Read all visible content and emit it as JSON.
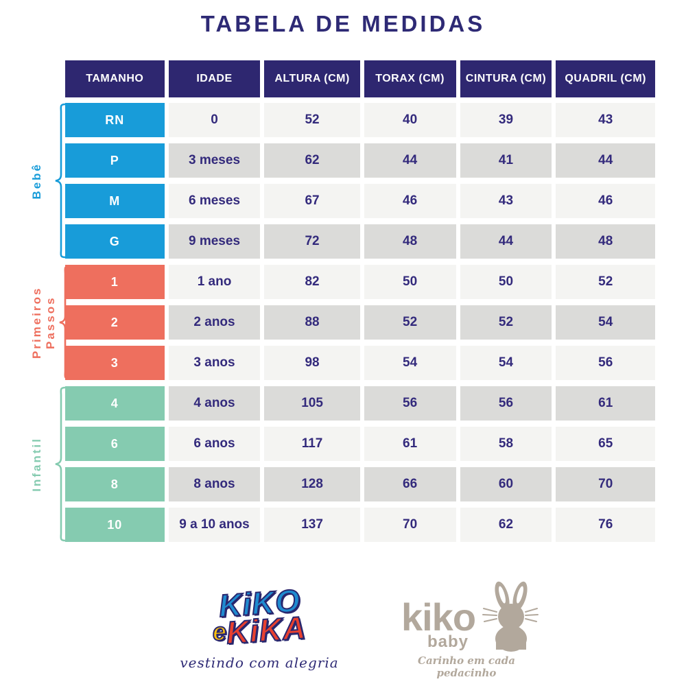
{
  "title": "TABELA DE MEDIDAS",
  "colors": {
    "header_bg": "#2E2770",
    "text_navy": "#332A7C",
    "row_light": "#F4F4F2",
    "row_dark": "#DBDBD9",
    "bebe": "#189CD9",
    "primeiros_passos": "#EE6F5E",
    "infantil": "#85CBB0"
  },
  "table": {
    "headers": [
      "TAMANHO",
      "IDADE",
      "ALTURA (CM)",
      "TORAX (CM)",
      "CINTURA (CM)",
      "QUADRIL (CM)"
    ],
    "groups": [
      {
        "label": "Bebê",
        "color_key": "bebe",
        "rows": [
          [
            "RN",
            "0",
            "52",
            "40",
            "39",
            "43"
          ],
          [
            "P",
            "3 meses",
            "62",
            "44",
            "41",
            "44"
          ],
          [
            "M",
            "6 meses",
            "67",
            "46",
            "43",
            "46"
          ],
          [
            "G",
            "9 meses",
            "72",
            "48",
            "44",
            "48"
          ]
        ]
      },
      {
        "label": "Primeiros Passos",
        "color_key": "primeiros_passos",
        "rows": [
          [
            "1",
            "1 ano",
            "82",
            "50",
            "50",
            "52"
          ],
          [
            "2",
            "2 anos",
            "88",
            "52",
            "52",
            "54"
          ],
          [
            "3",
            "3 anos",
            "98",
            "54",
            "54",
            "56"
          ]
        ]
      },
      {
        "label": "Infantil",
        "color_key": "infantil",
        "rows": [
          [
            "4",
            "4 anos",
            "105",
            "56",
            "56",
            "61"
          ],
          [
            "6",
            "6 anos",
            "117",
            "61",
            "58",
            "65"
          ],
          [
            "8",
            "8 anos",
            "128",
            "66",
            "60",
            "70"
          ],
          [
            "10",
            "9 a 10 anos",
            "137",
            "70",
            "62",
            "76"
          ]
        ]
      }
    ]
  },
  "footer": {
    "kiko_e_kika": {
      "word1": "KiKO",
      "word2": "e",
      "word3": "KiKA",
      "tagline": "vestindo com alegria"
    },
    "kiko_baby": {
      "name": "kiko",
      "sub": "baby",
      "tagline": "Carinho em cada pedacinho"
    }
  }
}
